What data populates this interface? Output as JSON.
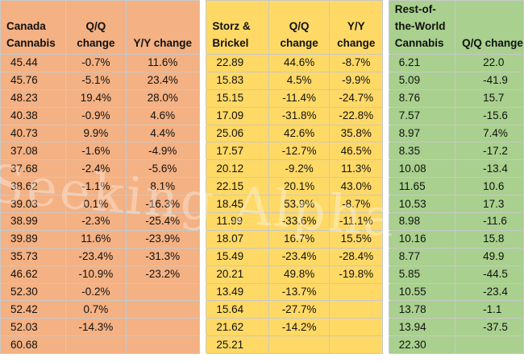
{
  "groups": [
    {
      "headers": [
        "Canada Cannabis",
        "Q/Q change",
        "Y/Y change"
      ],
      "rows": [
        [
          "45.44",
          "-0.7%",
          "11.6%"
        ],
        [
          "45.76",
          "-5.1%",
          "23.4%"
        ],
        [
          "48.23",
          "19.4%",
          "28.0%"
        ],
        [
          "40.38",
          "-0.9%",
          "4.6%"
        ],
        [
          "40.73",
          "9.9%",
          "4.4%"
        ],
        [
          "37.08",
          "-1.6%",
          "-4.9%"
        ],
        [
          "37.68",
          "-2.4%",
          "-5.6%"
        ],
        [
          "38.62",
          "-1.1%",
          "8.1%"
        ],
        [
          "39.03",
          "0.1%",
          "-16.3%"
        ],
        [
          "38.99",
          "-2.3%",
          "-25.4%"
        ],
        [
          "39.89",
          "11.6%",
          "-23.9%"
        ],
        [
          "35.73",
          "-23.4%",
          "-31.3%"
        ],
        [
          "46.62",
          "-10.9%",
          "-23.2%"
        ],
        [
          "52.30",
          "-0.2%",
          ""
        ],
        [
          "52.42",
          "0.7%",
          ""
        ],
        [
          "52.03",
          "-14.3%",
          ""
        ],
        [
          "60.68",
          "",
          ""
        ]
      ]
    },
    {
      "headers": [
        "Storz & Brickel",
        "Q/Q change",
        "Y/Y change"
      ],
      "rows": [
        [
          "22.89",
          "44.6%",
          "-8.7%"
        ],
        [
          "15.83",
          "4.5%",
          "-9.9%"
        ],
        [
          "15.15",
          "-11.4%",
          "-24.7%"
        ],
        [
          "17.09",
          "-31.8%",
          "-22.8%"
        ],
        [
          "25.06",
          "42.6%",
          "35.8%"
        ],
        [
          "17.57",
          "-12.7%",
          "46.5%"
        ],
        [
          "20.12",
          "-9.2%",
          "11.3%"
        ],
        [
          "22.15",
          "20.1%",
          "43.0%"
        ],
        [
          "18.45",
          "53.9%",
          "-8.7%"
        ],
        [
          "11.99",
          "-33.6%",
          "-11.1%"
        ],
        [
          "18.07",
          "16.7%",
          "15.5%"
        ],
        [
          "15.49",
          "-23.4%",
          "-28.4%"
        ],
        [
          "20.21",
          "49.8%",
          "-19.8%"
        ],
        [
          "13.49",
          "-13.7%",
          ""
        ],
        [
          "15.64",
          "-27.7%",
          ""
        ],
        [
          "21.62",
          "-14.2%",
          ""
        ],
        [
          "25.21",
          "",
          ""
        ]
      ]
    },
    {
      "headers": [
        "Rest-of-the-World Cannabis",
        "Q/Q change"
      ],
      "rows": [
        [
          "6.21",
          "22.0"
        ],
        [
          "5.09",
          "-41.9"
        ],
        [
          "8.76",
          "15.7"
        ],
        [
          "7.57",
          "-15.6"
        ],
        [
          "8.97",
          "7.4%"
        ],
        [
          "8.35",
          "-17.2"
        ],
        [
          "10.08",
          "-13.4"
        ],
        [
          "11.65",
          "10.6"
        ],
        [
          "10.53",
          "17.3"
        ],
        [
          "8.98",
          "-11.6"
        ],
        [
          "10.16",
          "15.8"
        ],
        [
          "8.77",
          "49.9"
        ],
        [
          "5.85",
          "-44.5"
        ],
        [
          "10.55",
          "-23.4"
        ],
        [
          "13.78",
          "-1.1"
        ],
        [
          "13.94",
          "-37.5"
        ],
        [
          "22.30",
          ""
        ]
      ]
    }
  ],
  "watermark": "Seeking Alpha",
  "colors": {
    "orange": "#f4b183",
    "yellow": "#ffd966",
    "green": "#a9d08e"
  }
}
